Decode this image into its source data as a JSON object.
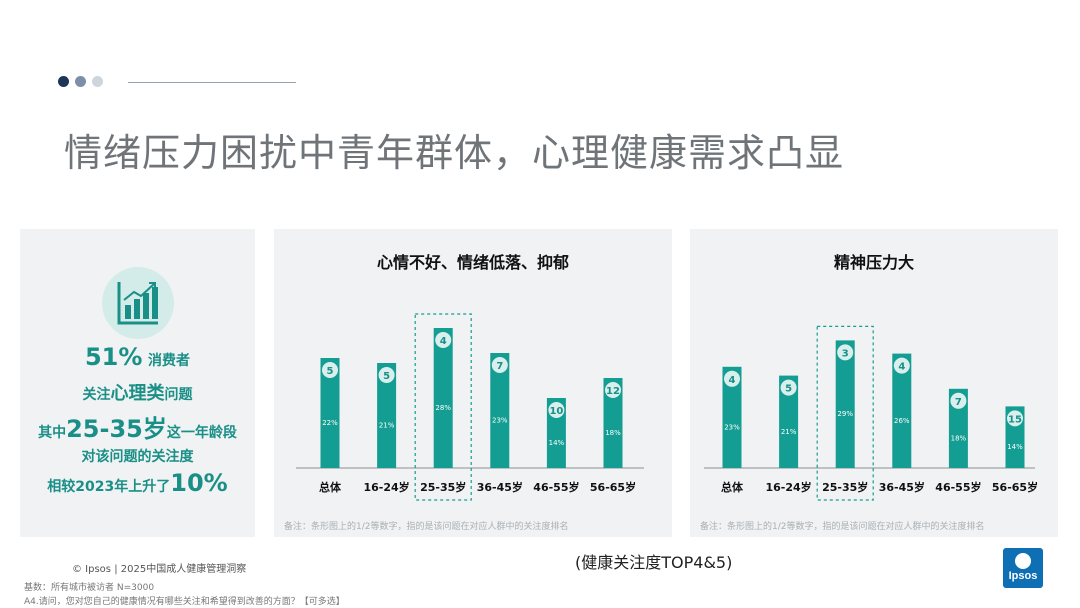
{
  "header": {
    "title": "情绪压力困扰中青年群体，心理健康需求凸显",
    "dot_colors": [
      "#1d3557",
      "#7d8fa8",
      "#cfd5dc"
    ]
  },
  "stat_panel": {
    "icon": "bar-chart-growth-icon",
    "pct": "51%",
    "consumers": "消费者",
    "focus_prefix": "关注",
    "focus_highlight": "心理类",
    "focus_suffix": "问题",
    "age_prefix": "其中",
    "age_highlight": "25-35岁",
    "age_suffix": "这一年龄段",
    "line4": "对该问题的关注度",
    "rise_prefix": "相较2023年上升了",
    "rise_value": "10%"
  },
  "chart_data": [
    {
      "type": "bar",
      "title": "心情不好、情绪低落、抑郁",
      "categories": [
        "总体",
        "16-24岁",
        "25-35岁",
        "36-45岁",
        "46-55岁",
        "56-65岁"
      ],
      "values": [
        22,
        21,
        28,
        23,
        14,
        18
      ],
      "value_labels": [
        "22%",
        "21%",
        "28%",
        "23%",
        "14%",
        "18%"
      ],
      "ranks": [
        "5",
        "5",
        "4",
        "7",
        "10",
        "12"
      ],
      "highlight_category": "25-35岁",
      "bar_color": "#149d92",
      "note": "备注：条形图上的1/2等数字，指的是该问题在对应人群中的关注度排名"
    },
    {
      "type": "bar",
      "title": "精神压力大",
      "categories": [
        "总体",
        "16-24岁",
        "25-35岁",
        "36-45岁",
        "46-55岁",
        "56-65岁"
      ],
      "values": [
        23,
        21,
        29,
        26,
        18,
        14
      ],
      "value_labels": [
        "23%",
        "21%",
        "29%",
        "26%",
        "18%",
        "14%"
      ],
      "ranks": [
        "4",
        "5",
        "3",
        "4",
        "7",
        "15"
      ],
      "highlight_category": "25-35岁",
      "bar_color": "#149d92",
      "note": "备注：条形图上的1/2等数字，指的是该问题在对应人群中的关注度排名"
    }
  ],
  "footer": {
    "copyright": "© Ipsos | 2025中国成人健康管理洞察",
    "base": "基数：所有城市被访者  N=3000",
    "question": "A4.请问，您对您自己的健康情况有哪些关注和希望得到改善的方面？【可多选】",
    "subnote": "(健康关注度TOP4&5)",
    "logo_text": "Ipsos",
    "logo_color": "#0e6fb5"
  }
}
